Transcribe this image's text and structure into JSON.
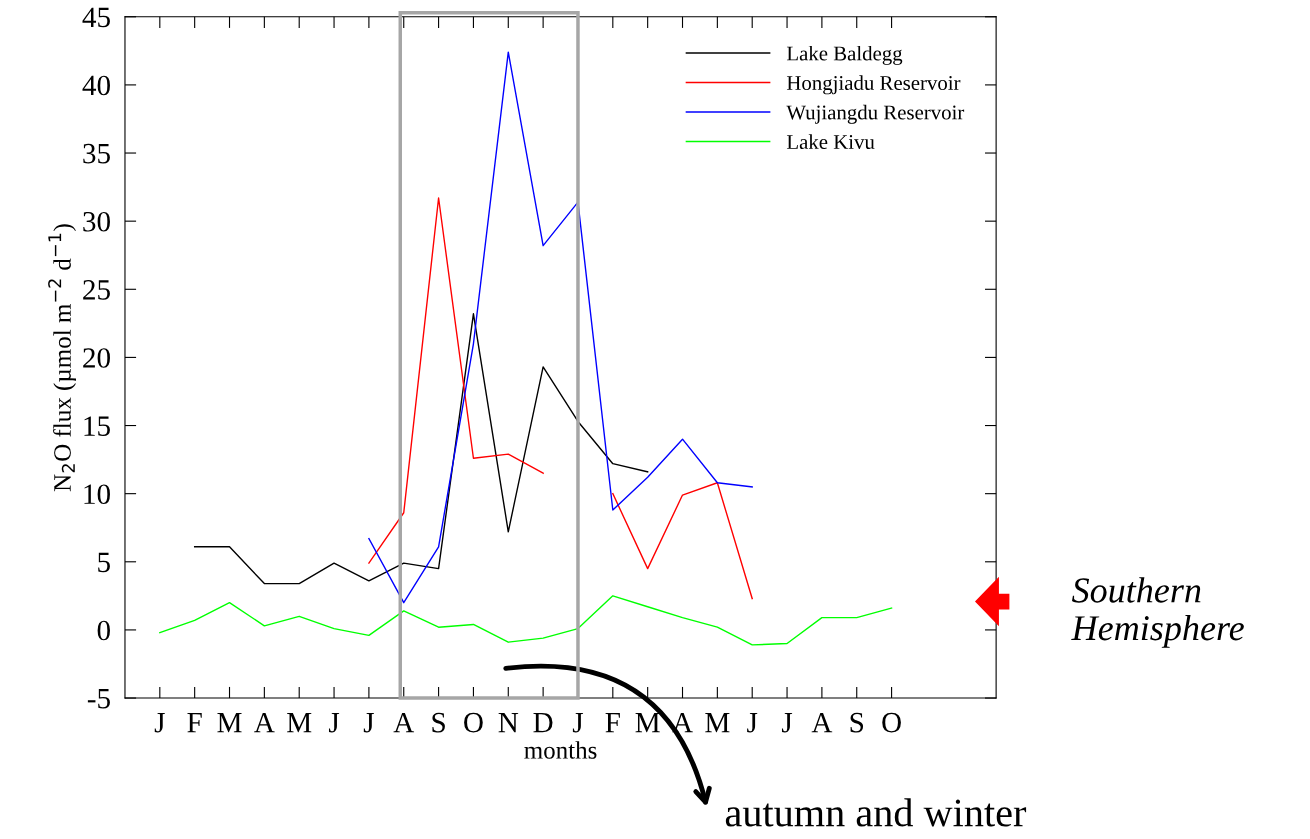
{
  "chart_data": {
    "type": "line",
    "xlabel": "months",
    "ylabel": "N$_{2}$O flux (µmol m$^{−2}$ d$^{−1}$)",
    "categories": [
      "J",
      "F",
      "M",
      "A",
      "M",
      "J",
      "J",
      "A",
      "S",
      "O",
      "N",
      "D",
      "J",
      "F",
      "M",
      "A",
      "M",
      "J",
      "J",
      "A",
      "S",
      "O"
    ],
    "series": [
      {
        "name": "Lake Baldegg",
        "color": "#000000",
        "values": [
          null,
          6.1,
          6.1,
          3.4,
          3.4,
          4.9,
          3.6,
          4.9,
          4.5,
          23.2,
          7.2,
          19.3,
          15.3,
          12.2,
          11.6,
          null,
          null,
          null,
          null,
          null,
          null,
          null
        ]
      },
      {
        "name": "Hongjiadu Reservoir",
        "color": "#ff0000",
        "values": [
          null,
          null,
          null,
          null,
          null,
          null,
          4.9,
          8.6,
          31.7,
          12.6,
          12.9,
          11.5,
          null,
          10.0,
          4.5,
          9.9,
          10.8,
          2.3,
          null,
          null,
          null,
          null
        ]
      },
      {
        "name": "Wujiangdu Reservoir",
        "color": "#0000ff",
        "values": [
          null,
          null,
          null,
          null,
          null,
          null,
          6.7,
          2.0,
          6.1,
          21,
          42.4,
          28.2,
          31.4,
          8.8,
          11.2,
          14.0,
          10.8,
          10.5,
          null,
          null,
          null,
          null
        ]
      },
      {
        "name": "Lake Kivu",
        "color": "#00ff00",
        "values": [
          -0.2,
          0.7,
          2.0,
          0.3,
          1.0,
          0.1,
          -0.4,
          1.4,
          0.2,
          0.4,
          -0.9,
          -0.6,
          0.1,
          2.5,
          1.7,
          0.9,
          0.2,
          -1.1,
          -1.0,
          0.9,
          0.9,
          1.6
        ]
      }
    ],
    "ylim": [
      -5,
      45
    ],
    "yticks": [
      {
        "value": -5,
        "label": "-5"
      },
      0,
      5,
      10,
      15,
      20,
      25,
      30,
      35,
      40,
      45
    ],
    "annotations": [
      "Southern Hemisphere",
      "autumn and winter"
    ],
    "legend": "top right",
    "grid": false
  }
}
